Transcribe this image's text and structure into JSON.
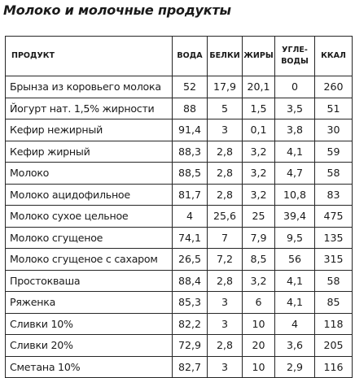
{
  "title": "Молоко и молочные продукты",
  "headers": {
    "product": "ПРОДУКТ",
    "water": "ВОДА",
    "protein": "БЕЛКИ",
    "fat": "ЖИРЫ",
    "carbs_line1": "УГЛЕ-",
    "carbs_line2": "ВОДЫ",
    "kcal": "ККАЛ"
  },
  "rows": [
    {
      "name": "Брынза из коровьего молока",
      "water": "52",
      "protein": "17,9",
      "fat": "20,1",
      "carbs": "0",
      "kcal": "260"
    },
    {
      "name": "Йогурт нат. 1,5% жирности",
      "water": "88",
      "protein": "5",
      "fat": "1,5",
      "carbs": "3,5",
      "kcal": "51"
    },
    {
      "name": "Кефир нежирный",
      "water": "91,4",
      "protein": "3",
      "fat": "0,1",
      "carbs": "3,8",
      "kcal": "30"
    },
    {
      "name": "Кефир жирный",
      "water": "88,3",
      "protein": "2,8",
      "fat": "3,2",
      "carbs": "4,1",
      "kcal": "59"
    },
    {
      "name": "Молоко",
      "water": "88,5",
      "protein": "2,8",
      "fat": "3,2",
      "carbs": "4,7",
      "kcal": "58"
    },
    {
      "name": "Молоко ацидофильное",
      "water": "81,7",
      "protein": "2,8",
      "fat": "3,2",
      "carbs": "10,8",
      "kcal": "83"
    },
    {
      "name": "Молоко сухое цельное",
      "water": "4",
      "protein": "25,6",
      "fat": "25",
      "carbs": "39,4",
      "kcal": "475"
    },
    {
      "name": "Молоко сгущеное",
      "water": "74,1",
      "protein": "7",
      "fat": "7,9",
      "carbs": "9,5",
      "kcal": "135"
    },
    {
      "name": "Молоко сгущеное с сахаром",
      "water": "26,5",
      "protein": "7,2",
      "fat": "8,5",
      "carbs": "56",
      "kcal": "315"
    },
    {
      "name": "Простокваша",
      "water": "88,4",
      "protein": "2,8",
      "fat": "3,2",
      "carbs": "4,1",
      "kcal": "58"
    },
    {
      "name": "Ряженка",
      "water": "85,3",
      "protein": "3",
      "fat": "6",
      "carbs": "4,1",
      "kcal": "85"
    },
    {
      "name": "Сливки 10%",
      "water": "82,2",
      "protein": "3",
      "fat": "10",
      "carbs": "4",
      "kcal": "118"
    },
    {
      "name": "Сливки 20%",
      "water": "72,9",
      "protein": "2,8",
      "fat": "20",
      "carbs": "3,6",
      "kcal": "205"
    },
    {
      "name": "Сметана 10%",
      "water": "82,7",
      "protein": "3",
      "fat": "10",
      "carbs": "2,9",
      "kcal": "116"
    }
  ]
}
